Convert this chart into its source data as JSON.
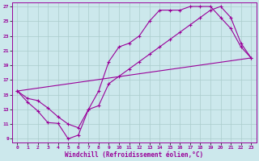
{
  "xlabel": "Windchill (Refroidissement éolien,°C)",
  "bg_color": "#cce8ec",
  "grid_color": "#aacccc",
  "line_color": "#990099",
  "xlim": [
    -0.5,
    23.5
  ],
  "ylim": [
    8.5,
    27.5
  ],
  "xticks": [
    0,
    1,
    2,
    3,
    4,
    5,
    6,
    7,
    8,
    9,
    10,
    11,
    12,
    13,
    14,
    15,
    16,
    17,
    18,
    19,
    20,
    21,
    22,
    23
  ],
  "yticks": [
    9,
    11,
    13,
    15,
    17,
    19,
    21,
    23,
    25,
    27
  ],
  "line1_x": [
    0,
    1,
    2,
    3,
    4,
    5,
    6,
    7,
    8,
    9,
    10,
    11,
    12,
    13,
    14,
    15,
    16,
    17,
    18,
    19,
    20,
    21,
    22,
    23
  ],
  "line1_y": [
    15.5,
    14.0,
    12.8,
    11.2,
    11.1,
    9.0,
    9.5,
    13.0,
    15.5,
    19.5,
    21.5,
    22.0,
    23.0,
    25.0,
    26.5,
    26.5,
    26.5,
    27.0,
    27.0,
    27.0,
    25.5,
    24.0,
    21.5,
    20.0
  ],
  "line2_x": [
    0,
    1,
    2,
    3,
    4,
    5,
    6,
    7,
    8,
    9,
    10,
    11,
    12,
    13,
    14,
    15,
    16,
    17,
    18,
    19,
    20,
    21,
    22,
    23
  ],
  "line2_y": [
    15.5,
    14.5,
    14.2,
    13.2,
    12.0,
    11.0,
    10.5,
    13.0,
    13.5,
    16.5,
    17.5,
    18.5,
    19.5,
    20.5,
    21.5,
    22.5,
    23.5,
    24.5,
    25.5,
    26.5,
    27.0,
    25.5,
    22.0,
    20.0
  ],
  "line3_x": [
    0,
    23
  ],
  "line3_y": [
    15.5,
    20.0
  ]
}
